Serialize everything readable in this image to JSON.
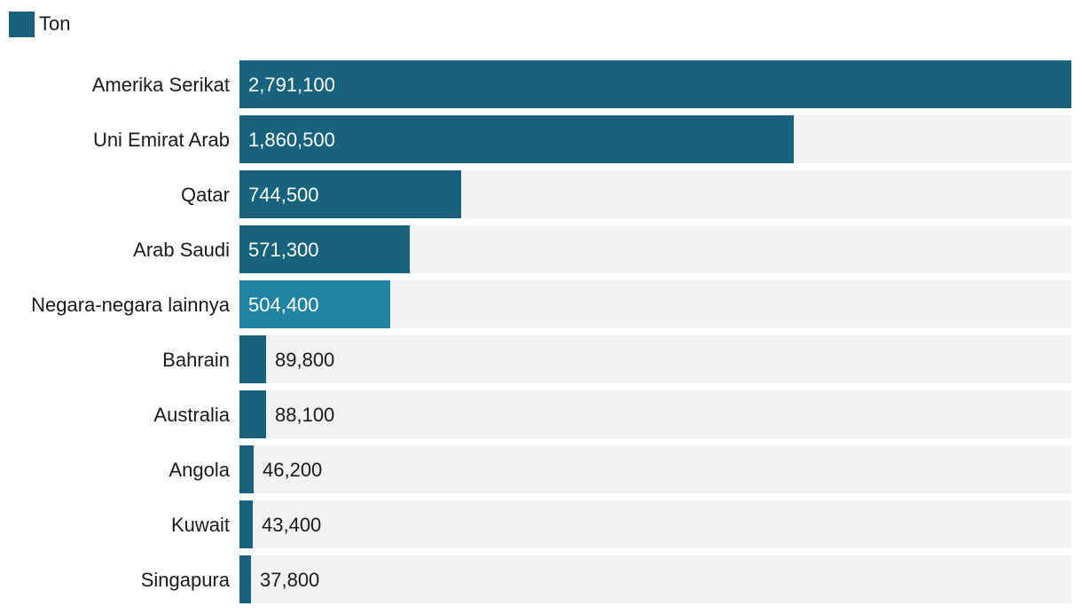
{
  "legend": {
    "label": "Ton",
    "color": "#17627c"
  },
  "colors": {
    "bar": "#17627c",
    "bar_highlight": "#1f83a2",
    "track": "#f2f2f2",
    "label_inside": "#ffffff",
    "label_outside": "#1a1a1a"
  },
  "chart_data": {
    "type": "bar",
    "orientation": "horizontal",
    "categories": [
      "Amerika Serikat",
      "Uni Emirat Arab",
      "Qatar",
      "Arab Saudi",
      "Negara-negara lainnya",
      "Bahrain",
      "Australia",
      "Angola",
      "Kuwait",
      "Singapura"
    ],
    "values": [
      2791100,
      1860500,
      744500,
      571300,
      504400,
      89800,
      88100,
      46200,
      43400,
      37800
    ],
    "value_labels": [
      "2,791,100",
      "1,860,500",
      "744,500",
      "571,300",
      "504,400",
      "89,800",
      "88,100",
      "46,200",
      "43,400",
      "37,800"
    ],
    "highlight": [
      "Negara-negara lainnya"
    ],
    "series": [
      {
        "name": "Ton",
        "values": [
          2791100,
          1860500,
          744500,
          571300,
          504400,
          89800,
          88100,
          46200,
          43400,
          37800
        ]
      }
    ],
    "xlim": [
      0,
      2791100
    ],
    "title": "",
    "xlabel": "",
    "ylabel": "",
    "grid": false,
    "legend_position": "top-left"
  }
}
